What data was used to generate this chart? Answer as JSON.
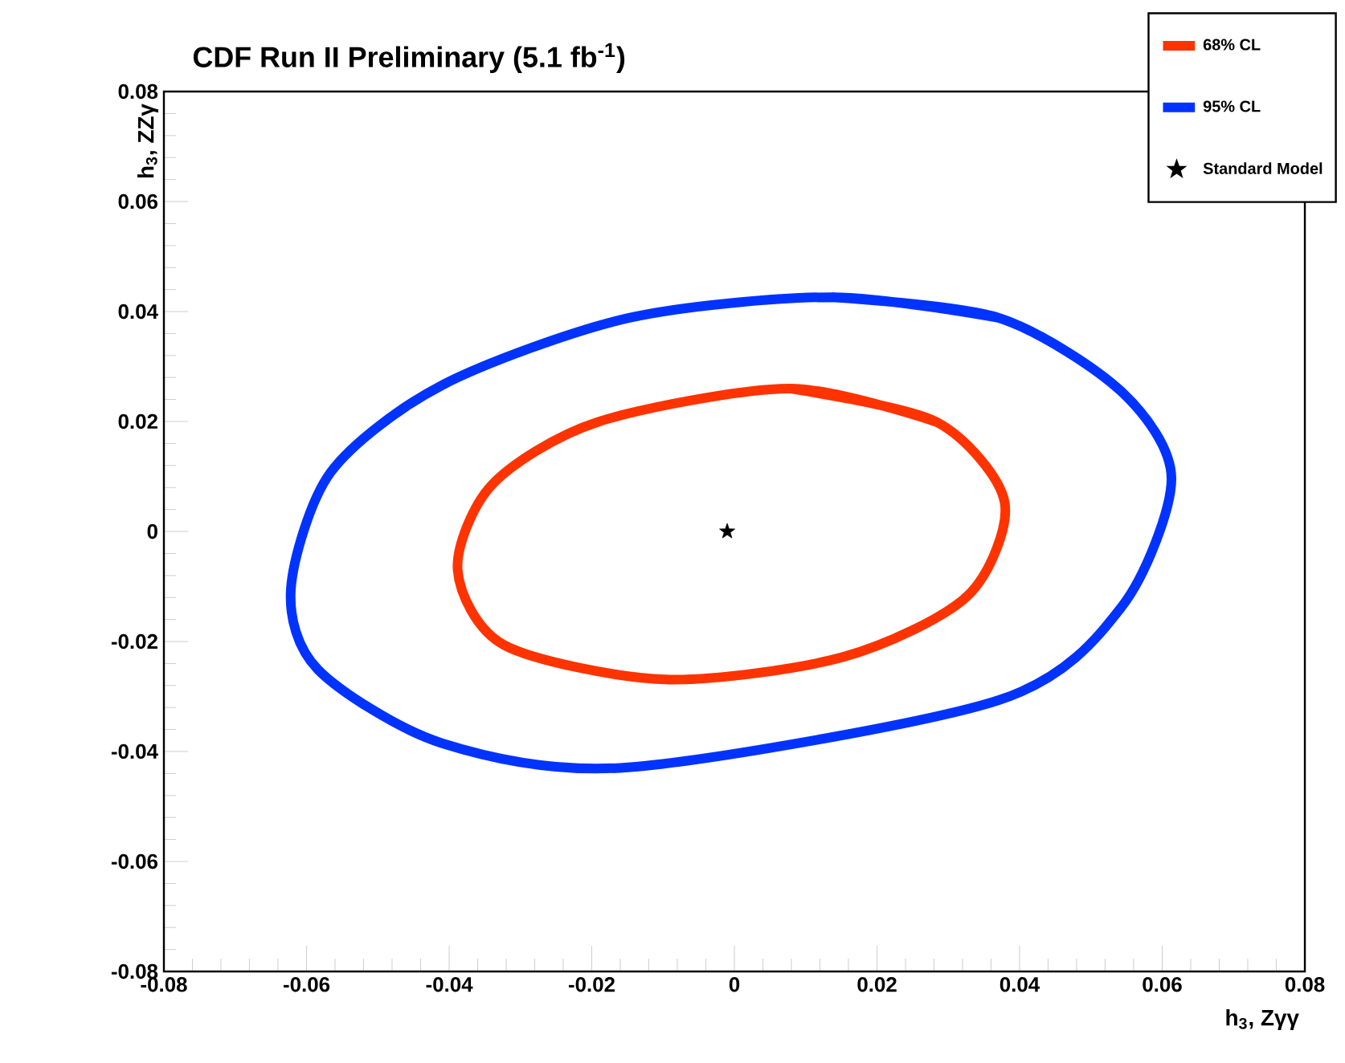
{
  "chart_data": {
    "type": "line",
    "title": "CDF Run II Preliminary (5.1 fb$^{-1}$)",
    "xlabel": "h$_{3}$, Zγγ",
    "ylabel": "h$_{3}$, ZZγ",
    "xlim": [
      -0.08,
      0.08
    ],
    "ylim": [
      -0.08,
      0.08
    ],
    "xticks": [
      -0.08,
      -0.06,
      -0.04,
      -0.02,
      0,
      0.02,
      0.04,
      0.06,
      0.08
    ],
    "yticks": [
      -0.08,
      -0.06,
      -0.04,
      -0.02,
      0,
      0.02,
      0.04,
      0.06,
      0.08
    ],
    "grid": false,
    "legend": "top right",
    "line_style": "solid",
    "series": [
      {
        "name": "68% CL",
        "color": "#ff3300",
        "marker": "none",
        "x": [
          0.0077,
          0.0284,
          0.0379,
          0.0327,
          0.0153,
          -0.0097,
          -0.0322,
          -0.0388,
          -0.034,
          -0.0192,
          0.0077,
          0.0284
        ],
        "values": [
          0.026,
          0.0199,
          0.0053,
          -0.0117,
          -0.0228,
          -0.0269,
          -0.0207,
          -0.007,
          0.0085,
          0.0199,
          0.026,
          0.0199
        ]
      },
      {
        "name": "95% CL",
        "color": "#0033ff",
        "marker": "none",
        "x": [
          0.0137,
          0.0372,
          0.0543,
          0.0613,
          0.0543,
          0.037,
          -0.0149,
          -0.041,
          -0.0584,
          -0.0622,
          -0.0566,
          -0.041,
          -0.0149,
          0.0137,
          0.0372
        ],
        "values": [
          0.0426,
          0.0388,
          0.0254,
          0.0096,
          -0.0137,
          -0.0307,
          -0.0429,
          -0.0385,
          -0.0251,
          -0.0105,
          0.0108,
          0.0266,
          0.0388,
          0.0426,
          0.0388
        ]
      },
      {
        "name": "Standard Model",
        "type": "scatter",
        "color": "#000000",
        "marker": "star",
        "x": [
          -0.001
        ],
        "values": [
          0
        ]
      }
    ]
  }
}
